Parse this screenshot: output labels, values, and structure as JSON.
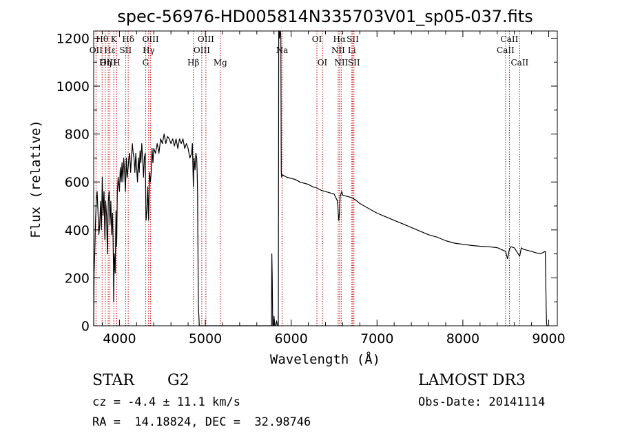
{
  "chart_data": {
    "type": "line",
    "title": "spec-56976-HD005814N335703V01_sp05-037.fits",
    "xlabel": "Wavelength (Å)",
    "ylabel": "Flux (relative)",
    "xlim": [
      3700,
      9100
    ],
    "ylim": [
      0,
      1230
    ],
    "xticks": [
      4000,
      5000,
      6000,
      7000,
      8000,
      9000
    ],
    "yticks": [
      0,
      200,
      400,
      600,
      800,
      1000,
      1200
    ],
    "series": [
      {
        "x": [
          3700,
          3705,
          3712,
          3720,
          3730,
          3740,
          3750,
          3760,
          3770,
          3780,
          3790,
          3800,
          3810,
          3820,
          3830,
          3840,
          3850,
          3860,
          3870,
          3880,
          3890,
          3900,
          3910,
          3920,
          3930,
          3933,
          3940,
          3950,
          3960,
          3968,
          3975,
          3985,
          4000,
          4010,
          4020,
          4030,
          4040,
          4050,
          4060,
          4070,
          4080,
          4090,
          4101,
          4110,
          4120,
          4130,
          4140,
          4150,
          4160,
          4170,
          4180,
          4190,
          4200,
          4210,
          4220,
          4230,
          4240,
          4250,
          4260,
          4270,
          4280,
          4290,
          4300,
          4310,
          4320,
          4330,
          4340,
          4350,
          4360,
          4370,
          4380,
          4390,
          4400,
          4420,
          4440,
          4460,
          4480,
          4500,
          4520,
          4540,
          4560,
          4580,
          4600,
          4620,
          4640,
          4660,
          4680,
          4700,
          4720,
          4740,
          4760,
          4780,
          4800,
          4820,
          4840,
          4850,
          4861,
          4870,
          4880,
          4890,
          4900,
          4905,
          4910,
          4915,
          4920,
          4925,
          4930,
          5770,
          5775,
          5780,
          5785,
          5790,
          5800,
          5810,
          5820,
          5830,
          5840,
          5850,
          5855,
          5860,
          5865,
          5870,
          5875,
          5880,
          5885,
          5890,
          5900,
          5920,
          5950,
          6000,
          6050,
          6100,
          6150,
          6200,
          6250,
          6300,
          6350,
          6400,
          6450,
          6500,
          6540,
          6555,
          6563,
          6570,
          6590,
          6600,
          6650,
          6700,
          6750,
          6800,
          6900,
          7000,
          7100,
          7200,
          7300,
          7400,
          7500,
          7600,
          7700,
          7800,
          7900,
          8000,
          8100,
          8200,
          8300,
          8400,
          8498,
          8520,
          8542,
          8560,
          8600,
          8662,
          8680,
          8700,
          8750,
          8800,
          8850,
          8900,
          8960,
          8970,
          8975,
          8980,
          8985,
          8990,
          8995
        ],
        "y": [
          0,
          220,
          300,
          420,
          520,
          560,
          480,
          380,
          420,
          520,
          400,
          620,
          460,
          560,
          360,
          520,
          460,
          300,
          520,
          560,
          420,
          520,
          380,
          470,
          260,
          100,
          300,
          220,
          480,
          330,
          560,
          620,
          560,
          660,
          600,
          680,
          600,
          700,
          640,
          560,
          700,
          620,
          660,
          700,
          720,
          640,
          700,
          760,
          720,
          700,
          640,
          720,
          660,
          600,
          700,
          640,
          730,
          680,
          760,
          700,
          620,
          700,
          720,
          440,
          480,
          580,
          440,
          640,
          600,
          640,
          740,
          680,
          740,
          720,
          760,
          720,
          780,
          760,
          800,
          760,
          790,
          780,
          760,
          780,
          750,
          780,
          740,
          780,
          760,
          780,
          740,
          760,
          740,
          700,
          720,
          760,
          580,
          700,
          650,
          720,
          700,
          640,
          560,
          300,
          80,
          40,
          0,
          0,
          300,
          200,
          0,
          0,
          40,
          0,
          0,
          20,
          0,
          0,
          1230,
          1230,
          1200,
          1220,
          1230,
          1210,
          640,
          620,
          630,
          625,
          620,
          615,
          610,
          600,
          595,
          590,
          580,
          575,
          565,
          560,
          555,
          550,
          520,
          440,
          470,
          540,
          560,
          545,
          540,
          535,
          525,
          510,
          490,
          470,
          455,
          440,
          425,
          410,
          395,
          380,
          370,
          355,
          345,
          340,
          335,
          332,
          330,
          326,
          310,
          280,
          320,
          330,
          325,
          290,
          325,
          320,
          315,
          310,
          305,
          300,
          310,
          80,
          10,
          0,
          0,
          0,
          0
        ]
      }
    ],
    "emission_lines": [
      {
        "label": "Hθ",
        "x": 3798,
        "row": 1
      },
      {
        "label": "OII",
        "x": 3727,
        "row": 2
      },
      {
        "label": "OIII",
        "x": 3869,
        "row": 3
      },
      {
        "label": "Hη",
        "x": 3835,
        "row": 3
      },
      {
        "label": "Hε",
        "x": 3889,
        "row": 2
      },
      {
        "label": "K",
        "x": 3934,
        "row": 1
      },
      {
        "label": "H",
        "x": 3969,
        "row": 3
      },
      {
        "label": "SII",
        "x": 4072,
        "row": 2
      },
      {
        "label": "Hδ",
        "x": 4102,
        "row": 1
      },
      {
        "label": "G",
        "x": 4305,
        "row": 3
      },
      {
        "label": "Hγ",
        "x": 4340,
        "row": 2
      },
      {
        "label": "OIII",
        "x": 4363,
        "row": 1
      },
      {
        "label": "Hβ",
        "x": 4861,
        "row": 3
      },
      {
        "label": "OIII",
        "x": 4959,
        "row": 2
      },
      {
        "label": "OIII",
        "x": 5007,
        "row": 1
      },
      {
        "label": "Mg",
        "x": 5175,
        "row": 3
      },
      {
        "label": "Na",
        "x": 5894,
        "row": 2
      },
      {
        "label": "OI",
        "x": 6300,
        "row": 1
      },
      {
        "label": "OI",
        "x": 6364,
        "row": 3
      },
      {
        "label": "NII",
        "x": 6548,
        "row": 2
      },
      {
        "label": "Hα",
        "x": 6563,
        "row": 1
      },
      {
        "label": "NII",
        "x": 6583,
        "row": 3
      },
      {
        "label": "Li",
        "x": 6707,
        "row": 2
      },
      {
        "label": "SII",
        "x": 6717,
        "row": 1
      },
      {
        "label": "SII",
        "x": 6731,
        "row": 3
      },
      {
        "label": "CaII",
        "x": 8498,
        "row": 2
      },
      {
        "label": "CaII",
        "x": 8542,
        "row": 1
      },
      {
        "label": "CaII",
        "x": 8662,
        "row": 3
      }
    ]
  },
  "info": {
    "class_label": "STAR",
    "subclass": "G2",
    "survey": "LAMOST DR3",
    "cz": "cz = -4.4 ± 11.1 km/s",
    "obs_date": "Obs-Date: 20141114",
    "radec": "RA =  14.18824, DEC =  32.98746"
  },
  "colors": {
    "spectrum": "#000000",
    "lines": "#cc0000"
  }
}
